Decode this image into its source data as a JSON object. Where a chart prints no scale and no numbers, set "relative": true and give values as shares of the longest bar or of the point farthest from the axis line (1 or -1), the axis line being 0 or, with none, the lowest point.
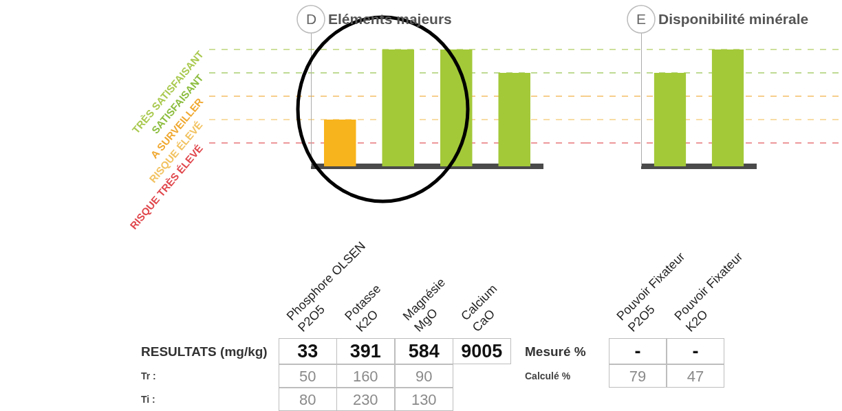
{
  "chart_data": [
    {
      "type": "bar",
      "title": "D",
      "subtitle": "Eléments majeurs",
      "categories": [
        "Phosphore OLSEN\nP2O5",
        "Potasse\nK2O",
        "Magnésie\nMgO",
        "Calcium\nCaO"
      ],
      "values": [
        0.4,
        1,
        1,
        0.8
      ],
      "colors": [
        "#f8b41c",
        "#a3c939",
        "#a3c939",
        "#a3c939"
      ],
      "relative": true,
      "tick_labels": "x",
      "ref_lines": [
        {
          "axis": "y",
          "value": 1,
          "label": "TRÈS SATISFAISANT",
          "color": "#a9c94f",
          "line_style": "dashed"
        },
        {
          "axis": "y",
          "value": 0.8,
          "label": "SATISFAISANT",
          "color": "#8cbd3f",
          "line_style": "dashed"
        },
        {
          "axis": "y",
          "value": 0.6,
          "label": "A SURVEILLER",
          "color": "#f0a830",
          "line_style": "dashed"
        },
        {
          "axis": "y",
          "value": 0.4,
          "label": "RISQUE ÉLEVÉ",
          "color": "#f2c260",
          "line_style": "dashed"
        },
        {
          "axis": "y",
          "value": 0.2,
          "label": "RISQUE TRÈS ÉLEVÉ",
          "color": "#e0474c",
          "line_style": "dashed"
        }
      ],
      "annotations": [
        "RESULTATS (mg/kg)",
        "33",
        "391",
        "584",
        "9005",
        "Tr :",
        "50",
        "160",
        "90",
        "Ti :",
        "80",
        "230",
        "130"
      ]
    },
    {
      "type": "bar",
      "title": "E",
      "subtitle": "Disponibilité minérale",
      "categories": [
        "Pouvoir Fixateur\nP2O5",
        "Pouvoir Fixateur\nK2O"
      ],
      "values": [
        0.8,
        1
      ],
      "colors": [
        "#a3c939",
        "#a3c939"
      ],
      "relative": true,
      "tick_labels": "x",
      "ref_lines": [
        {
          "axis": "y",
          "value": 1,
          "color": "#a9c94f",
          "line_style": "dashed"
        },
        {
          "axis": "y",
          "value": 0.8,
          "color": "#8cbd3f",
          "line_style": "dashed"
        },
        {
          "axis": "y",
          "value": 0.6,
          "color": "#f0a830",
          "line_style": "dashed"
        },
        {
          "axis": "y",
          "value": 0.4,
          "color": "#f2c260",
          "line_style": "dashed"
        },
        {
          "axis": "y",
          "value": 0.2,
          "color": "#e0474c",
          "line_style": "dashed"
        }
      ],
      "annotations": [
        "Mesuré %",
        "-",
        "-",
        "Calculé %",
        "79",
        "47"
      ]
    }
  ]
}
